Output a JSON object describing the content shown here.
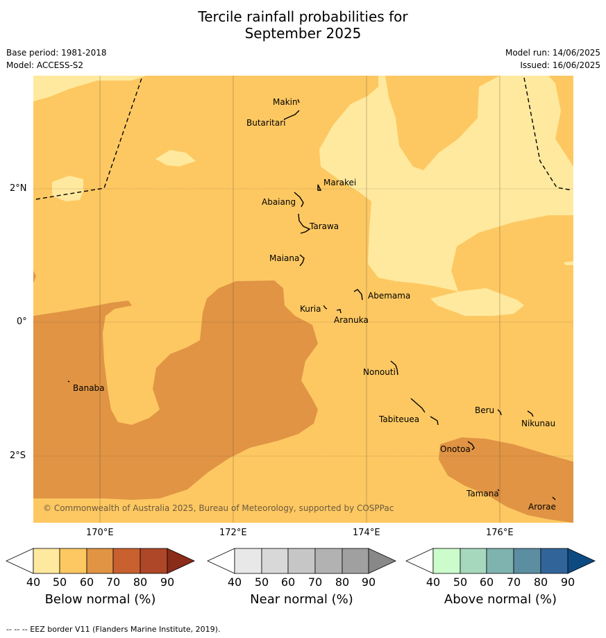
{
  "title_line1": "Tercile rainfall probabilities for",
  "title_line2": "September 2025",
  "base_period": "Base period: 1981-2018",
  "model": "Model: ACCESS-S2",
  "model_run": "Model run: 14/06/2025",
  "issued": "Issued: 16/06/2025",
  "lat_labels": [
    "2°N",
    "0°",
    "2°S"
  ],
  "lon_labels": [
    "170°E",
    "172°E",
    "174°E",
    "176°E"
  ],
  "islands": [
    "Makin",
    "Butaritari",
    "Marakei",
    "Abaiang",
    "Tarawa",
    "Maiana",
    "Abemama",
    "Kuria",
    "Aranuka",
    "Nonouti",
    "Banaba",
    "Tabiteuea",
    "Beru",
    "Nikunau",
    "Onotoa",
    "Tamana",
    "Arorae"
  ],
  "copyright": "© Commonwealth of Australia 2025, Bureau of Meteorology, supported by COSPPac",
  "colorbars": [
    {
      "label": "Below normal (%)",
      "ticks": [
        "40",
        "50",
        "60",
        "70",
        "80",
        "90"
      ],
      "colors": [
        "#ffffff",
        "#ffe99e",
        "#fdc862",
        "#e09444",
        "#c9602f",
        "#ad4727",
        "#8b2b19"
      ]
    },
    {
      "label": "Near normal (%)",
      "ticks": [
        "40",
        "50",
        "60",
        "70",
        "80",
        "90"
      ],
      "colors": [
        "#ffffff",
        "#e8e8e8",
        "#d8d8d8",
        "#c6c6c6",
        "#b2b2b2",
        "#a0a0a0",
        "#888888"
      ]
    },
    {
      "label": "Above normal (%)",
      "ticks": [
        "40",
        "50",
        "60",
        "70",
        "80",
        "90"
      ],
      "colors": [
        "#ffffff",
        "#ccfccc",
        "#a6d8bd",
        "#7fb3b0",
        "#5b8ea0",
        "#31659a",
        "#0e4a82"
      ]
    }
  ],
  "footer": "-- -- -- EEZ border V11 (Flanders Marine Institute, 2019).",
  "colors": {
    "light": "#ffe99e",
    "mid": "#fdc862",
    "dark": "#e09444"
  }
}
